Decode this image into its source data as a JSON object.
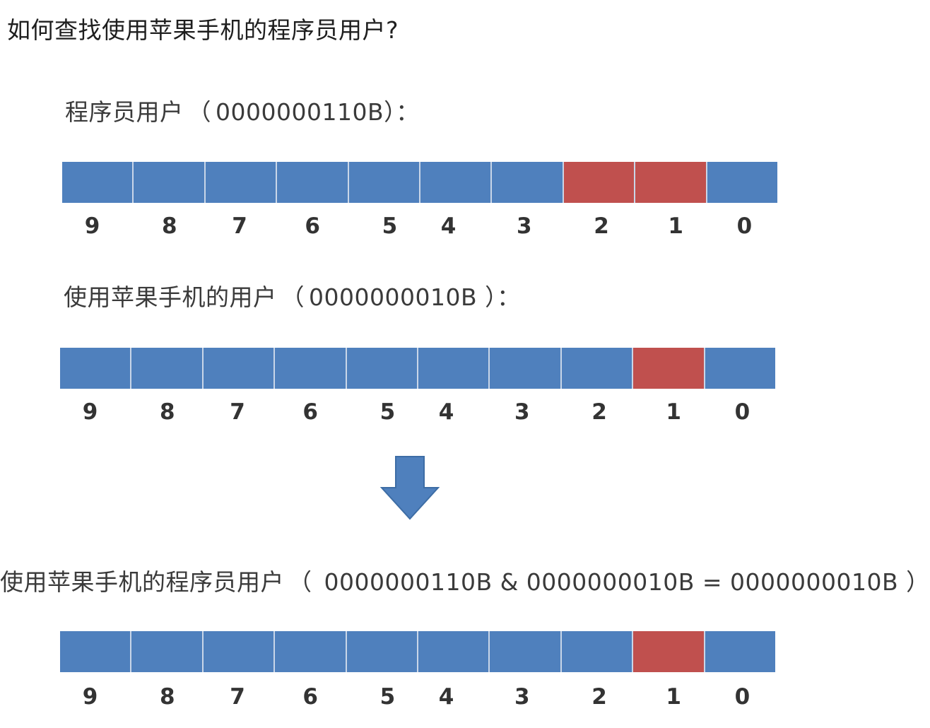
{
  "title": "如何查找使用苹果手机的程序员用户?",
  "colors": {
    "bit_off": "#4f80bd",
    "bit_on": "#c0504e",
    "separator": "#c9d6e8",
    "arrow": "#4f80bd"
  },
  "bit_indices": [
    "9",
    "8",
    "7",
    "6",
    "5",
    "4",
    "3",
    "2",
    "1",
    "0"
  ],
  "rows": [
    {
      "caption_label": "程序员用户",
      "caption_value": "0000000110B",
      "open_paren": "（",
      "close_paren": "）：",
      "on_bits": [
        2,
        1
      ]
    },
    {
      "caption_label": "使用苹果手机的用户",
      "caption_value": "0000000010B ",
      "open_paren": "（",
      "close_paren": "）：",
      "on_bits": [
        1
      ]
    },
    {
      "caption_label": "使用苹果手机的程序员用户",
      "caption_value": " 0000000110B & 0000000010B = 0000000010B ",
      "open_paren": "（",
      "close_paren": "）",
      "on_bits": [
        1
      ]
    }
  ],
  "arrow_icon": "down-arrow-icon"
}
